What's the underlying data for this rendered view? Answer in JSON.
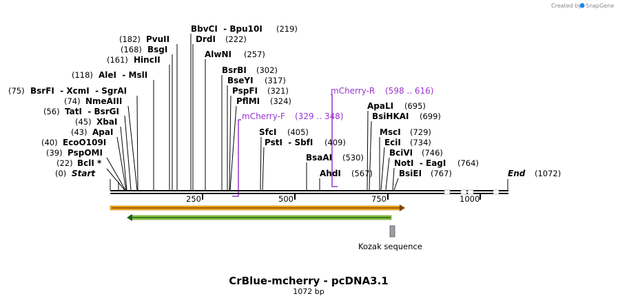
{
  "credit": {
    "text": "Created by",
    "brand": "SnapGene"
  },
  "title": "CrBlue-mcherry - pcDNA3.1",
  "subtitle": "1072 bp",
  "ticks": [
    "250",
    "500",
    "750",
    "1000"
  ],
  "ends": {
    "start_label": "Start",
    "start_pos": "(0)",
    "end_label": "End",
    "end_pos": "(1072)"
  },
  "sites": [
    {
      "pos": "(22)",
      "names": "BclI *"
    },
    {
      "pos": "(39)",
      "names": "PspOMI"
    },
    {
      "pos": "(40)",
      "names": "EcoO109I"
    },
    {
      "pos": "(43)",
      "names": "ApaI"
    },
    {
      "pos": "(45)",
      "names": "XbaI"
    },
    {
      "pos": "(56)",
      "names": "TatI  - BsrGI"
    },
    {
      "pos": "(74)",
      "names": "NmeAIII"
    },
    {
      "pos": "(75)",
      "names": "BsrFI  - XcmI  - SgrAI"
    },
    {
      "pos": "(118)",
      "names": "AleI  - MslI"
    },
    {
      "pos": "(161)",
      "names": "HincII"
    },
    {
      "pos": "(168)",
      "names": "BsgI"
    },
    {
      "pos": "(182)",
      "names": "PvuII"
    },
    {
      "pos": "(219)",
      "names": "BbvCI  - Bpu10I"
    },
    {
      "pos": "(222)",
      "names": "DrdI"
    },
    {
      "pos": "(257)",
      "names": "AlwNI"
    },
    {
      "pos": "(302)",
      "names": "BsrBI"
    },
    {
      "pos": "(317)",
      "names": "BseYI"
    },
    {
      "pos": "(321)",
      "names": "PspFI"
    },
    {
      "pos": "(324)",
      "names": "PflMI"
    },
    {
      "pos": "(405)",
      "names": "SfcI"
    },
    {
      "pos": "(409)",
      "names": "PstI  - SbfI"
    },
    {
      "pos": "(530)",
      "names": "BsaAI"
    },
    {
      "pos": "(567)",
      "names": "AhdI"
    },
    {
      "pos": "(695)",
      "names": "ApaLI"
    },
    {
      "pos": "(699)",
      "names": "BsiHKAI"
    },
    {
      "pos": "(729)",
      "names": "MscI"
    },
    {
      "pos": "(734)",
      "names": "EciI"
    },
    {
      "pos": "(746)",
      "names": "BciVI"
    },
    {
      "pos": "(764)",
      "names": "NotI  - EagI"
    },
    {
      "pos": "(767)",
      "names": "BsiEI"
    }
  ],
  "primers": [
    {
      "name": "mCherry-F",
      "range": "(329 .. 348)"
    },
    {
      "name": "mCherry-R",
      "range": "(598 .. 616)"
    }
  ],
  "features": [
    {
      "name": "Kozak sequence"
    }
  ],
  "colors": {
    "primer": "#9933cc",
    "orange_feature": "#f5a623",
    "green_feature": "#8dc63f",
    "kozak": "#9aa0a6",
    "brand": "#1e88e5"
  }
}
